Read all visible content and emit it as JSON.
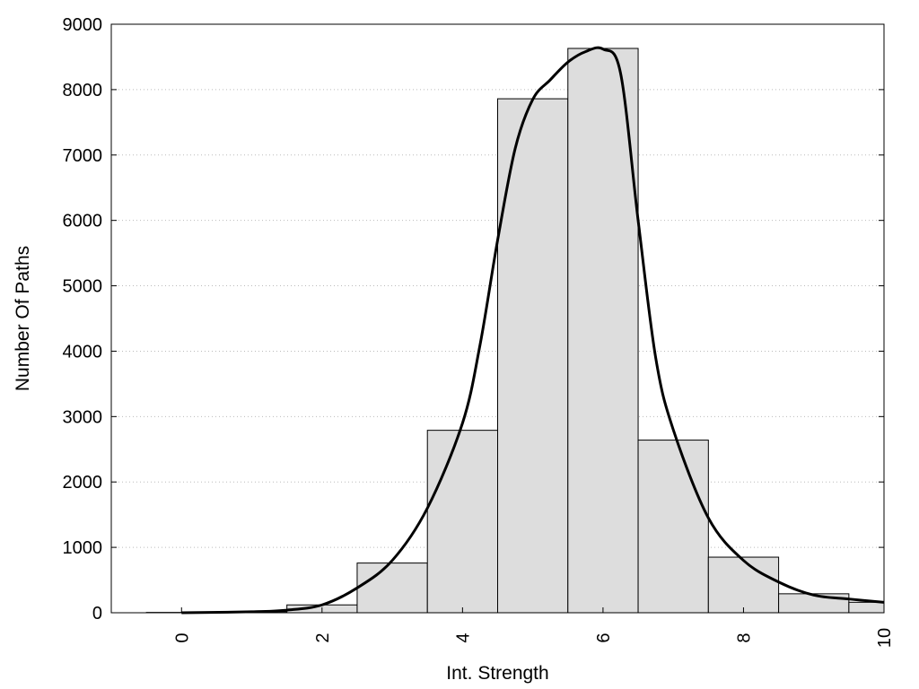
{
  "chart_data": {
    "type": "bar",
    "xlabel": "Int. Strength",
    "ylabel": "Number Of Paths",
    "xlim": [
      -1,
      10
    ],
    "ylim": [
      0,
      9000
    ],
    "x_ticks": [
      0,
      2,
      4,
      6,
      8,
      10
    ],
    "y_ticks": [
      0,
      1000,
      2000,
      3000,
      4000,
      5000,
      6000,
      7000,
      8000,
      9000
    ],
    "grid": "horizontal dotted",
    "bar_color": "#dddddd",
    "bars": [
      {
        "x": 0,
        "value": 5
      },
      {
        "x": 1,
        "value": 15
      },
      {
        "x": 2,
        "value": 120
      },
      {
        "x": 3,
        "value": 760
      },
      {
        "x": 4,
        "value": 2790
      },
      {
        "x": 5,
        "value": 7860
      },
      {
        "x": 6,
        "value": 8630
      },
      {
        "x": 7,
        "value": 2640
      },
      {
        "x": 8,
        "value": 850
      },
      {
        "x": 9,
        "value": 290
      },
      {
        "x": 10,
        "value": 160
      }
    ],
    "curve": {
      "x": [
        0,
        1,
        1.5,
        2,
        2.5,
        3,
        3.5,
        4,
        4.25,
        4.5,
        4.75,
        5,
        5.25,
        5.5,
        5.75,
        6,
        6.25,
        6.5,
        6.75,
        7,
        7.5,
        8,
        8.5,
        9,
        9.5,
        10
      ],
      "y": [
        0,
        15,
        40,
        120,
        380,
        800,
        1600,
        2900,
        4100,
        5700,
        7100,
        7850,
        8150,
        8420,
        8580,
        8620,
        8250,
        6000,
        3900,
        2800,
        1450,
        800,
        470,
        270,
        210,
        160
      ]
    }
  }
}
